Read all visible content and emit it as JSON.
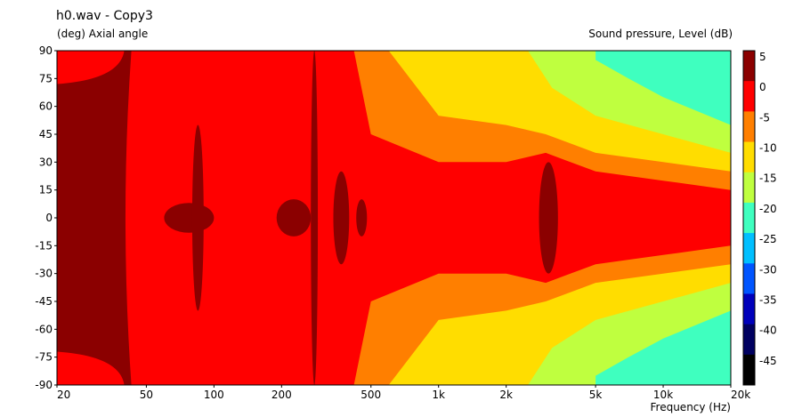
{
  "chart_data": {
    "type": "heatmap",
    "title": "h0.wav - Copy3",
    "ylabel": "(deg)  Axial angle",
    "xlabel": "Frequency  (Hz)",
    "zlabel": "Sound pressure, Level  (dB)",
    "x_scale": "log",
    "xlim": [
      20,
      20000
    ],
    "ylim": [
      -90,
      90
    ],
    "x_ticks": [
      {
        "value": 20,
        "label": "20"
      },
      {
        "value": 50,
        "label": "50"
      },
      {
        "value": 100,
        "label": "100"
      },
      {
        "value": 200,
        "label": "200"
      },
      {
        "value": 500,
        "label": "500"
      },
      {
        "value": 1000,
        "label": "1k"
      },
      {
        "value": 2000,
        "label": "2k"
      },
      {
        "value": 5000,
        "label": "5k"
      },
      {
        "value": 10000,
        "label": "10k"
      },
      {
        "value": 20000,
        "label": "20k"
      }
    ],
    "y_ticks": [
      90,
      75,
      60,
      45,
      30,
      15,
      0,
      -15,
      -30,
      -45,
      -60,
      -75,
      -90
    ],
    "colorbar": {
      "ticks": [
        "5",
        "0",
        "-5",
        "-10",
        "-15",
        "-20",
        "-25",
        "-30",
        "-35",
        "-40",
        "-45"
      ],
      "bands": [
        {
          "from": 0,
          "to": 5,
          "color": "#8b0000"
        },
        {
          "from": -5,
          "to": 0,
          "color": "#ff0000"
        },
        {
          "from": -10,
          "to": -5,
          "color": "#ff7f00"
        },
        {
          "from": -15,
          "to": -10,
          "color": "#ffdd00"
        },
        {
          "from": -20,
          "to": -15,
          "color": "#bfff3f"
        },
        {
          "from": -25,
          "to": -20,
          "color": "#3fffbf"
        },
        {
          "from": -30,
          "to": -25,
          "color": "#00bfff"
        },
        {
          "from": -35,
          "to": -30,
          "color": "#0055ff"
        },
        {
          "from": -40,
          "to": -35,
          "color": "#0000bb"
        },
        {
          "from": -45,
          "to": -40,
          "color": "#000060"
        },
        {
          "from": -50,
          "to": -45,
          "color": "#000000"
        }
      ]
    },
    "contours": [
      {
        "level": -5,
        "color": "#ff7f00",
        "angles_at": [
          [
            420,
            90
          ],
          [
            500,
            45
          ],
          [
            1000,
            30
          ],
          [
            2000,
            30
          ],
          [
            3000,
            35
          ],
          [
            5000,
            25
          ],
          [
            10000,
            20
          ],
          [
            20000,
            15
          ]
        ]
      },
      {
        "level": -10,
        "color": "#ffdd00",
        "angles_at": [
          [
            600,
            90
          ],
          [
            1000,
            55
          ],
          [
            2000,
            50
          ],
          [
            3000,
            45
          ],
          [
            5000,
            35
          ],
          [
            10000,
            30
          ],
          [
            20000,
            25
          ]
        ]
      },
      {
        "level": -15,
        "color": "#bfff3f",
        "angles_at": [
          [
            2500,
            90
          ],
          [
            3200,
            70
          ],
          [
            5000,
            55
          ],
          [
            10000,
            45
          ],
          [
            20000,
            35
          ]
        ]
      },
      {
        "level": -20,
        "color": "#3fffbf",
        "angles_at": [
          [
            5000,
            85
          ],
          [
            7000,
            75
          ],
          [
            10000,
            65
          ],
          [
            20000,
            50
          ]
        ]
      }
    ],
    "peaks_above_0dB": [
      {
        "freq_range": [
          20,
          40
        ],
        "angle_range": [
          -72,
          72
        ]
      },
      {
        "freq_range": [
          60,
          100
        ],
        "angle_range": [
          -8,
          8
        ]
      },
      {
        "freq_range": [
          80,
          90
        ],
        "angle_range": [
          -50,
          50
        ]
      },
      {
        "freq_range": [
          190,
          270
        ],
        "angle_range": [
          -10,
          10
        ]
      },
      {
        "freq_range": [
          270,
          290
        ],
        "angle_range": [
          -90,
          90
        ]
      },
      {
        "freq_range": [
          340,
          400
        ],
        "angle_range": [
          -25,
          25
        ]
      },
      {
        "freq_range": [
          430,
          480
        ],
        "angle_range": [
          -10,
          10
        ]
      },
      {
        "freq_range": [
          2800,
          3400
        ],
        "angle_range": [
          -30,
          30
        ]
      }
    ]
  }
}
